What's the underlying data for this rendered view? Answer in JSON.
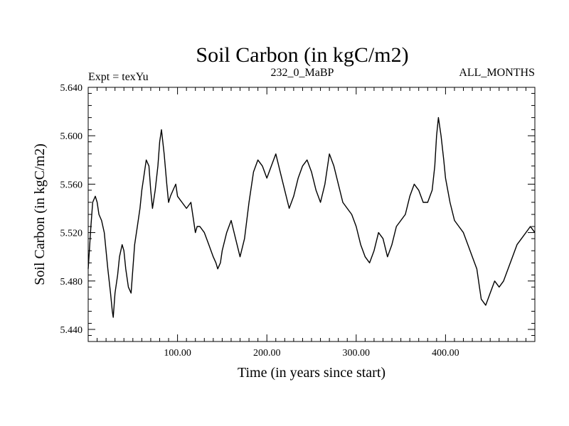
{
  "chart_data": {
    "type": "line",
    "title": "Soil Carbon (in kgC/m2)",
    "subtitle_left": "Expt = texYu",
    "subtitle_center": "232_0_MaBP",
    "subtitle_right": "ALL_MONTHS",
    "xlabel": "Time (in years since start)",
    "ylabel": "Soil Carbon (in kgC/m2)",
    "xlim": [
      0,
      500
    ],
    "ylim": [
      5.43,
      5.64
    ],
    "x_ticks": [
      {
        "value": 100,
        "label": "100.00"
      },
      {
        "value": 200,
        "label": "200.00"
      },
      {
        "value": 300,
        "label": "300.00"
      },
      {
        "value": 400,
        "label": "400.00"
      }
    ],
    "y_ticks": [
      {
        "value": 5.44,
        "label": "5.440"
      },
      {
        "value": 5.48,
        "label": "5.480"
      },
      {
        "value": 5.52,
        "label": "5.520"
      },
      {
        "value": 5.56,
        "label": "5.560"
      },
      {
        "value": 5.6,
        "label": "5.600"
      },
      {
        "value": 5.64,
        "label": "5.640"
      }
    ],
    "line_color": "#000000",
    "series": [
      {
        "x": [
          0,
          3,
          5,
          8,
          10,
          12,
          15,
          18,
          20,
          22,
          25,
          27,
          28,
          30,
          33,
          35,
          38,
          40,
          42,
          45,
          48,
          50,
          52,
          55,
          58,
          60,
          62,
          65,
          68,
          70,
          72,
          75,
          78,
          80,
          82,
          85,
          88,
          90,
          92,
          95,
          98,
          100,
          105,
          110,
          115,
          118,
          120,
          122,
          125,
          130,
          135,
          140,
          143,
          145,
          148,
          150,
          155,
          160,
          165,
          170,
          175,
          180,
          185,
          190,
          195,
          200,
          205,
          210,
          215,
          220,
          225,
          230,
          235,
          240,
          245,
          250,
          255,
          260,
          265,
          270,
          275,
          280,
          285,
          290,
          295,
          300,
          305,
          310,
          315,
          320,
          325,
          330,
          335,
          340,
          345,
          350,
          355,
          360,
          365,
          370,
          375,
          380,
          385,
          388,
          390,
          392,
          395,
          398,
          400,
          405,
          410,
          415,
          420,
          425,
          430,
          435,
          438,
          440,
          445,
          450,
          455,
          460,
          465,
          470,
          475,
          480,
          485,
          490,
          495,
          500
        ],
        "y": [
          5.49,
          5.525,
          5.545,
          5.55,
          5.545,
          5.535,
          5.53,
          5.52,
          5.505,
          5.49,
          5.47,
          5.455,
          5.45,
          5.47,
          5.485,
          5.5,
          5.51,
          5.505,
          5.49,
          5.475,
          5.47,
          5.49,
          5.51,
          5.525,
          5.54,
          5.555,
          5.565,
          5.58,
          5.575,
          5.555,
          5.54,
          5.555,
          5.575,
          5.595,
          5.605,
          5.585,
          5.56,
          5.545,
          5.55,
          5.555,
          5.56,
          5.55,
          5.545,
          5.54,
          5.545,
          5.53,
          5.52,
          5.525,
          5.525,
          5.52,
          5.51,
          5.5,
          5.495,
          5.49,
          5.495,
          5.505,
          5.52,
          5.53,
          5.515,
          5.5,
          5.515,
          5.545,
          5.57,
          5.58,
          5.575,
          5.565,
          5.575,
          5.585,
          5.57,
          5.555,
          5.54,
          5.55,
          5.565,
          5.575,
          5.58,
          5.57,
          5.555,
          5.545,
          5.56,
          5.585,
          5.575,
          5.56,
          5.545,
          5.54,
          5.535,
          5.525,
          5.51,
          5.5,
          5.495,
          5.505,
          5.52,
          5.515,
          5.5,
          5.51,
          5.525,
          5.53,
          5.535,
          5.55,
          5.56,
          5.555,
          5.545,
          5.545,
          5.555,
          5.575,
          5.6,
          5.615,
          5.6,
          5.58,
          5.565,
          5.545,
          5.53,
          5.525,
          5.52,
          5.51,
          5.5,
          5.49,
          5.475,
          5.465,
          5.46,
          5.47,
          5.48,
          5.475,
          5.48,
          5.49,
          5.5,
          5.51,
          5.515,
          5.52,
          5.525,
          5.52
        ]
      }
    ]
  }
}
